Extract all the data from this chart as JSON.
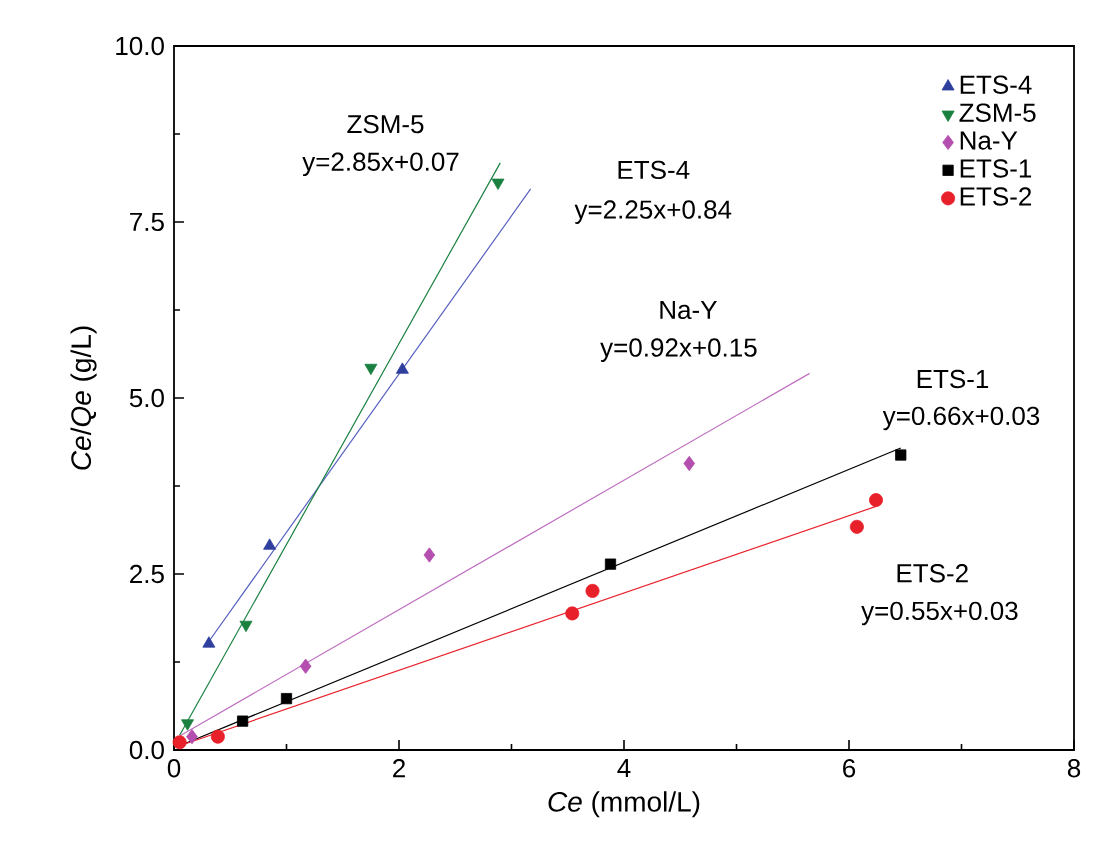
{
  "chart_data": {
    "type": "scatter",
    "xlabel": "*Ce* (mmol/L)",
    "ylabel": "*Ce*/*Qe* (g/L)",
    "xlim": [
      0,
      8
    ],
    "xticks": [
      0,
      2,
      4,
      6,
      8
    ],
    "ylim": [
      0,
      10
    ],
    "yticks": [
      {
        "value": 0,
        "label": "0.0"
      },
      {
        "value": 2.5,
        "label": "2.5"
      },
      {
        "value": 5,
        "label": "5.0"
      },
      {
        "value": 7.5,
        "label": "7.5"
      },
      {
        "value": 10,
        "label": "10.0"
      }
    ],
    "legend": "top right",
    "grid": false,
    "series": [
      {
        "name": "ETS-4",
        "color": "#2e3f9e",
        "marker": "triangle",
        "x": [
          0.31,
          0.85,
          2.03
        ],
        "values": [
          1.51,
          2.9,
          5.4
        ]
      },
      {
        "name": "ZSM-5",
        "color": "#1a8040",
        "marker": "triangle-down",
        "x": [
          0.12,
          0.64,
          1.75,
          2.88
        ],
        "values": [
          0.38,
          1.78,
          5.43,
          8.06
        ]
      },
      {
        "name": "Na-Y",
        "color": "#b44fb0",
        "marker": "diamond",
        "x": [
          0.16,
          1.17,
          2.27,
          4.58
        ],
        "values": [
          0.19,
          1.19,
          2.77,
          4.07
        ]
      },
      {
        "name": "ETS-1",
        "color": "#000000",
        "marker": "square",
        "x": [
          0.61,
          1.0,
          3.88,
          6.46
        ],
        "values": [
          0.41,
          0.73,
          2.64,
          4.19
        ]
      },
      {
        "name": "ETS-2",
        "color": "#e8202a",
        "marker": "circle",
        "x": [
          0.05,
          0.39,
          3.54,
          3.72,
          6.07,
          6.24
        ],
        "values": [
          0.11,
          0.19,
          1.94,
          2.26,
          3.17,
          3.55
        ]
      },
      {
        "type": "line",
        "color": "#5560c0",
        "x": [
          0.3,
          3.17
        ],
        "values": [
          1.52,
          7.97
        ]
      },
      {
        "type": "line",
        "color": "#1a8040",
        "x": [
          0.05,
          2.9
        ],
        "values": [
          0.21,
          8.34
        ]
      },
      {
        "type": "line",
        "color": "#c070c0",
        "x": [
          0.05,
          5.65
        ],
        "values": [
          0.2,
          5.35
        ]
      },
      {
        "type": "line",
        "color": "#000000",
        "x": [
          0.05,
          6.46
        ],
        "values": [
          0.06,
          4.29
        ]
      },
      {
        "type": "line",
        "color": "#e8202a",
        "x": [
          0.05,
          6.24
        ],
        "values": [
          0.06,
          3.46
        ]
      }
    ],
    "annotations": [
      "ZSM-5",
      "y=2.85x+0.07",
      "ETS-4",
      "y=2.25x+0.84",
      "Na-Y",
      "y=0.92x+0.15",
      "ETS-1",
      "y=0.66x+0.03",
      "ETS-2",
      "y=0.55x+0.03"
    ]
  }
}
